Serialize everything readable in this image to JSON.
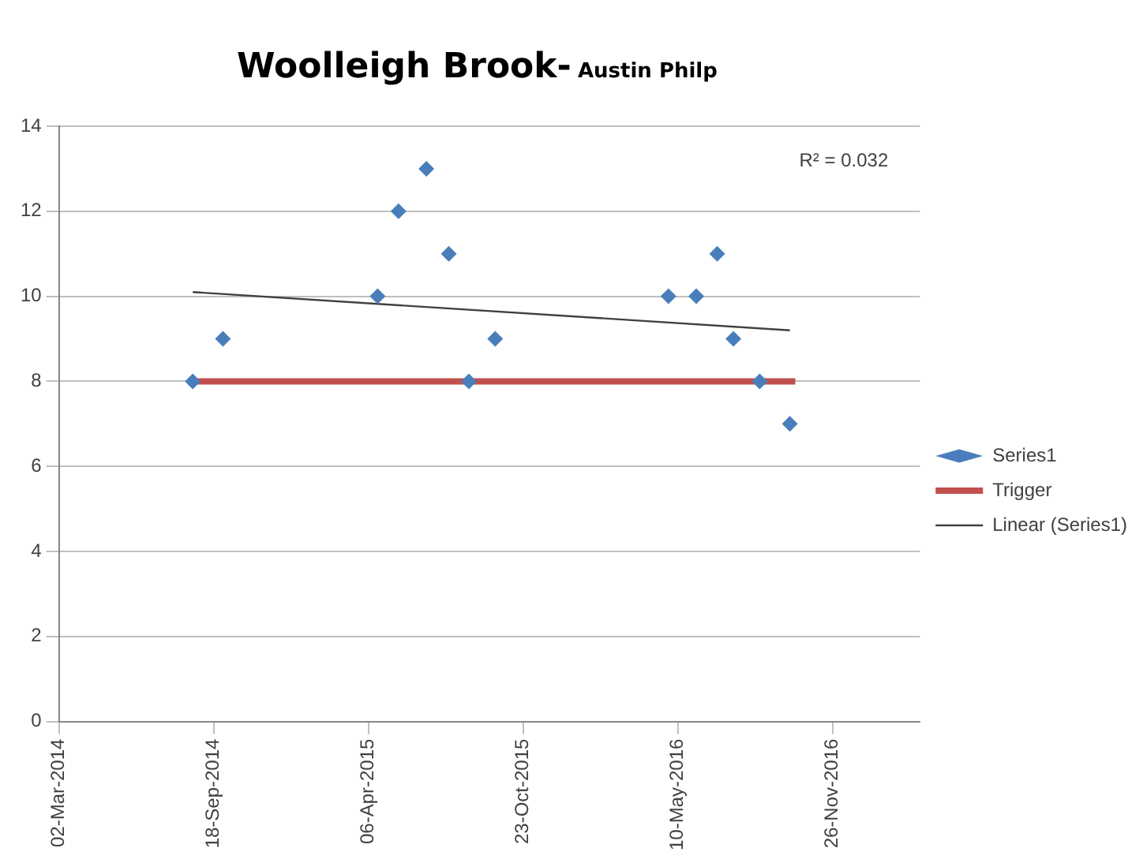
{
  "chart_data": {
    "type": "scatter",
    "title": "Woolleigh Brook-",
    "subtitle": "Austin Philp",
    "x": [
      "2014-08-22",
      "2014-09-30",
      "2015-04-18",
      "2015-05-15",
      "2015-06-20",
      "2015-07-19",
      "2015-08-14",
      "2015-09-17",
      "2016-04-28",
      "2016-06-03",
      "2016-06-30",
      "2016-07-21",
      "2016-08-24",
      "2016-10-02"
    ],
    "series": [
      {
        "name": "Series1",
        "color": "#4a7ebb",
        "marker": "diamond",
        "values": [
          8,
          9,
          10,
          12,
          13,
          11,
          8,
          9,
          10,
          10,
          11,
          9,
          8,
          7
        ]
      },
      {
        "name": "Trigger",
        "type": "line",
        "color": "#c0504d",
        "marker": "none",
        "x": [
          "2014-08-22",
          "2016-10-09"
        ],
        "values": [
          8,
          8
        ]
      },
      {
        "name": "Linear (Series1)",
        "type": "line",
        "color": "#404040",
        "marker": "none",
        "x": [
          "2014-08-22",
          "2016-10-02"
        ],
        "values": [
          10.1,
          9.2
        ]
      }
    ],
    "xlim": [
      "2014-03-02",
      "2017-03-19"
    ],
    "xticks": [
      {
        "value": "2014-03-02",
        "label": "02-Mar-2014"
      },
      {
        "value": "2014-09-18",
        "label": "18-Sep-2014"
      },
      {
        "value": "2015-04-06",
        "label": "06-Apr-2015"
      },
      {
        "value": "2015-10-23",
        "label": "23-Oct-2015"
      },
      {
        "value": "2016-05-10",
        "label": "10-May-2016"
      },
      {
        "value": "2016-11-26",
        "label": "26-Nov-2016"
      }
    ],
    "ylim": [
      0,
      14
    ],
    "yticks": [
      0,
      2,
      4,
      6,
      8,
      10,
      12,
      14
    ],
    "grid": "y",
    "legend": "right",
    "annotations": [
      "R² = 0.032"
    ]
  }
}
